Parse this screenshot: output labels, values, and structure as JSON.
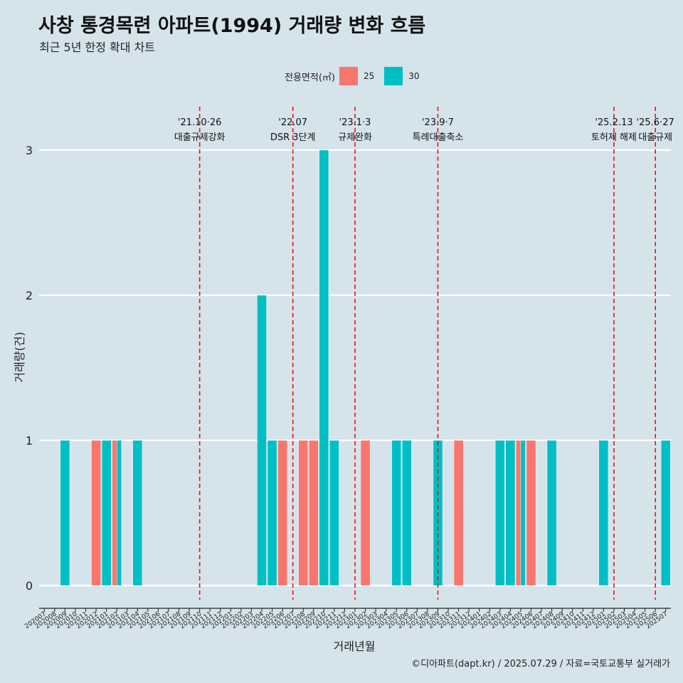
{
  "title": "사창 통경목련 아파트(1994) 거래량 변화 흐름",
  "subtitle": "최근 5년 한정 확대 차트",
  "caption": "©디아파트(dapt.kr) / 2025.07.29 / 자료=국토교통부 실거래가",
  "legend": {
    "title": "전용면적(㎡)",
    "items": [
      {
        "label": "25",
        "color": "#f8766d"
      },
      {
        "label": "30",
        "color": "#00bfc4"
      }
    ]
  },
  "chart_data": {
    "type": "bar",
    "stacking": "dodge",
    "xlabel": "거래년월",
    "ylabel": "거래량(건)",
    "ylim": [
      0,
      3
    ],
    "yticks": [
      0,
      1,
      2,
      3
    ],
    "grid": true,
    "legend_position": "top",
    "categories": [
      "202007",
      "202008",
      "202009",
      "202010",
      "202011",
      "202012",
      "202101",
      "202102",
      "202103",
      "202104",
      "202105",
      "202106",
      "202107",
      "202108",
      "202109",
      "202110",
      "202111",
      "202112",
      "202201",
      "202202",
      "202203",
      "202204",
      "202205",
      "202206",
      "202207",
      "202208",
      "202209",
      "202210",
      "202211",
      "202212",
      "202301",
      "202302",
      "202303",
      "202304",
      "202305",
      "202306",
      "202307",
      "202308",
      "202309",
      "202310",
      "202311",
      "202312",
      "202401",
      "202402",
      "202403",
      "202404",
      "202405",
      "202406",
      "202407",
      "202408",
      "202409",
      "202410",
      "202411",
      "202412",
      "202501",
      "202502",
      "202503",
      "202504",
      "202505",
      "202506",
      "202507"
    ],
    "series": [
      {
        "name": "25",
        "color": "#f8766d",
        "values": [
          0,
          0,
          0,
          0,
          0,
          1,
          0,
          1,
          0,
          0,
          0,
          0,
          0,
          0,
          0,
          0,
          0,
          0,
          0,
          0,
          0,
          0,
          0,
          1,
          0,
          1,
          1,
          0,
          0,
          0,
          0,
          1,
          0,
          0,
          0,
          0,
          0,
          0,
          0,
          0,
          1,
          0,
          0,
          0,
          0,
          0,
          1,
          1,
          0,
          0,
          0,
          0,
          0,
          0,
          0,
          0,
          0,
          0,
          0,
          0,
          0
        ]
      },
      {
        "name": "30",
        "color": "#00bfc4",
        "values": [
          0,
          0,
          1,
          0,
          0,
          0,
          1,
          1,
          0,
          1,
          0,
          0,
          0,
          0,
          0,
          0,
          0,
          0,
          0,
          0,
          0,
          2,
          1,
          0,
          0,
          0,
          0,
          3,
          1,
          0,
          0,
          0,
          0,
          0,
          1,
          1,
          0,
          0,
          1,
          0,
          0,
          0,
          0,
          0,
          1,
          1,
          1,
          0,
          0,
          1,
          0,
          0,
          0,
          0,
          1,
          0,
          0,
          0,
          0,
          0,
          1
        ]
      }
    ],
    "annotations": [
      {
        "x": "202110",
        "date": "'21.10·26",
        "label": "대출규제강화"
      },
      {
        "x": "202207",
        "date": "'22.07",
        "label": "DSR 3단계"
      },
      {
        "x": "202301",
        "date": "'23.1·3",
        "label": "규제완화"
      },
      {
        "x": "202309",
        "date": "'23.9·7",
        "label": "특례대출축소"
      },
      {
        "x": "202502",
        "date": "'25.2.13",
        "label": "토허제 해제"
      },
      {
        "x": "202506",
        "date": "'25.6·27",
        "label": "대출규제"
      }
    ]
  }
}
